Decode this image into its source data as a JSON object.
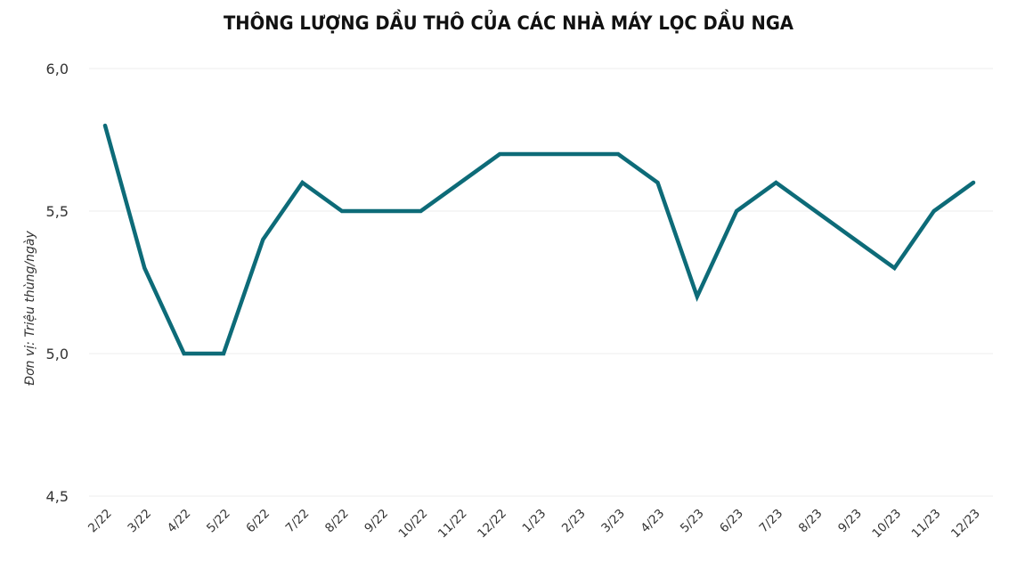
{
  "chart_data": {
    "type": "line",
    "title": "THÔNG LƯỢNG DẦU THÔ CỦA CÁC NHÀ MÁY LỌC DẦU NGA",
    "xlabel": "",
    "ylabel": "Đơn vị: Triệu thùng/ngày",
    "ylim": [
      4.5,
      6.0
    ],
    "yticks": [
      "6,0",
      "5,5",
      "5,0",
      "4,5"
    ],
    "ytick_values": [
      6.0,
      5.5,
      5.0,
      4.5
    ],
    "grid": true,
    "legend": null,
    "categories": [
      "2/22",
      "3/22",
      "4/22",
      "5/22",
      "6/22",
      "7/22",
      "8/22",
      "9/22",
      "10/22",
      "11/22",
      "12/22",
      "1/23",
      "2/23",
      "3/23",
      "4/23",
      "5/23",
      "6/23",
      "7/23",
      "8/23",
      "9/23",
      "10/23",
      "11/23",
      "12/23"
    ],
    "series": [
      {
        "name": "Thông lượng dầu thô",
        "color": "#0d6b78",
        "values": [
          5.8,
          5.3,
          5.0,
          5.0,
          5.4,
          5.6,
          5.5,
          5.5,
          5.5,
          5.6,
          5.7,
          5.7,
          5.7,
          5.7,
          5.6,
          5.2,
          5.5,
          5.6,
          5.5,
          5.4,
          5.3,
          5.5,
          5.6
        ]
      }
    ]
  },
  "colors": {
    "line": "#0d6b78",
    "grid": "#eeeeee",
    "text": "#333333",
    "title": "#111111"
  }
}
